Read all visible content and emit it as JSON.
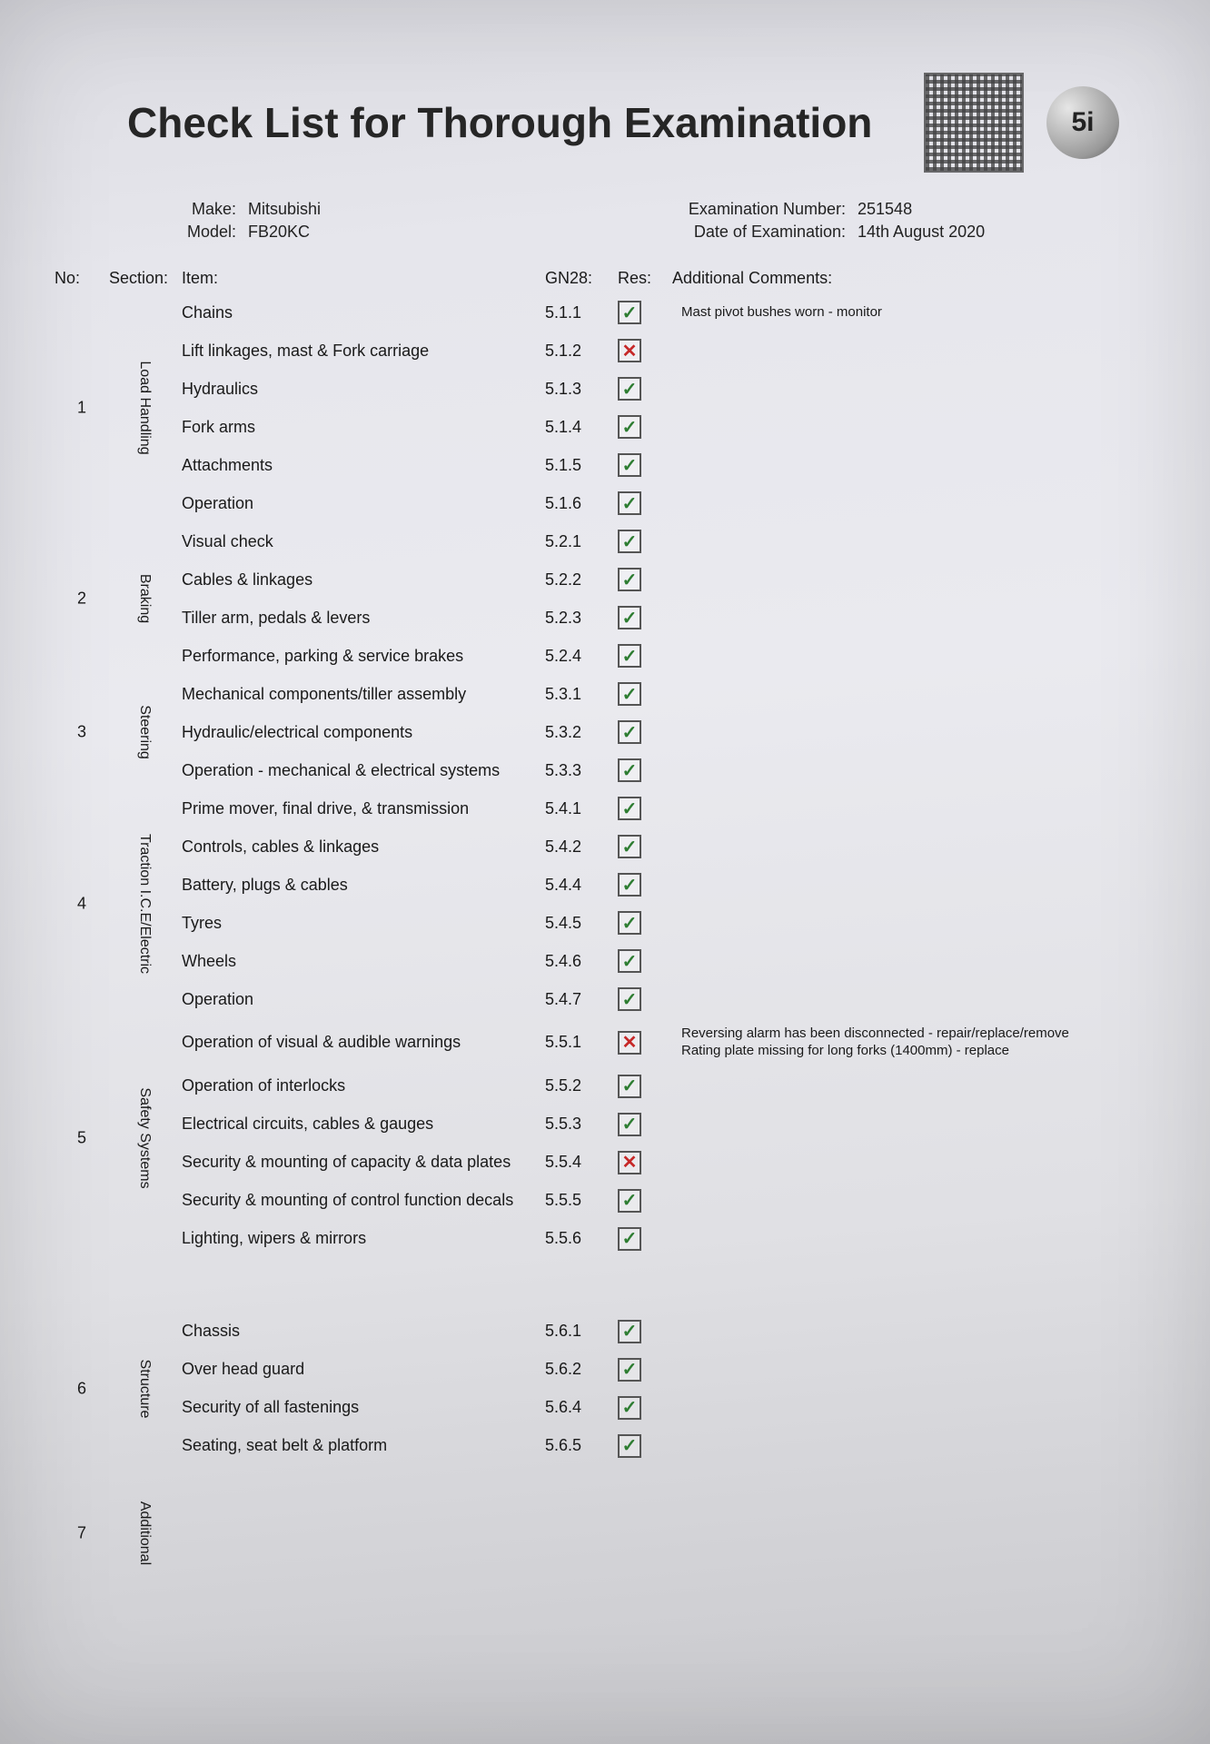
{
  "title": "Check List for Thorough Examination",
  "logo_text": "5i",
  "meta": {
    "make_lbl": "Make:",
    "make_val": "Mitsubishi",
    "model_lbl": "Model:",
    "model_val": "FB20KC",
    "exam_no_lbl": "Examination Number:",
    "exam_no_val": "251548",
    "exam_date_lbl": "Date of Examination:",
    "exam_date_val": "14th August 2020"
  },
  "columns": {
    "no": "No:",
    "section": "Section:",
    "item": "Item:",
    "gn": "GN28:",
    "res": "Res:",
    "comments": "Additional Comments:"
  },
  "styles": {
    "pass_color": "#2e7d32",
    "fail_color": "#c62828",
    "box_border": "#555555",
    "page_bg": "#e6e6ec",
    "title_fontsize": 46,
    "body_fontsize": 18
  },
  "glyphs": {
    "pass": "✓",
    "fail": "✕"
  },
  "sections": [
    {
      "no": "1",
      "name": "Load Handling",
      "rows": [
        {
          "item": "Chains",
          "gn": "5.1.1",
          "res": "pass",
          "comment": "Mast pivot bushes worn - monitor"
        },
        {
          "item": "Lift linkages, mast & Fork carriage",
          "gn": "5.1.2",
          "res": "fail",
          "comment": ""
        },
        {
          "item": "Hydraulics",
          "gn": "5.1.3",
          "res": "pass",
          "comment": ""
        },
        {
          "item": "Fork arms",
          "gn": "5.1.4",
          "res": "pass",
          "comment": ""
        },
        {
          "item": "Attachments",
          "gn": "5.1.5",
          "res": "pass",
          "comment": ""
        },
        {
          "item": "Operation",
          "gn": "5.1.6",
          "res": "pass",
          "comment": ""
        }
      ]
    },
    {
      "no": "2",
      "name": "Braking",
      "rows": [
        {
          "item": "Visual check",
          "gn": "5.2.1",
          "res": "pass",
          "comment": ""
        },
        {
          "item": "Cables & linkages",
          "gn": "5.2.2",
          "res": "pass",
          "comment": ""
        },
        {
          "item": "Tiller arm, pedals & levers",
          "gn": "5.2.3",
          "res": "pass",
          "comment": ""
        },
        {
          "item": "Performance, parking & service brakes",
          "gn": "5.2.4",
          "res": "pass",
          "comment": ""
        }
      ]
    },
    {
      "no": "3",
      "name": "Steering",
      "rows": [
        {
          "item": "Mechanical components/tiller assembly",
          "gn": "5.3.1",
          "res": "pass",
          "comment": ""
        },
        {
          "item": "Hydraulic/electrical components",
          "gn": "5.3.2",
          "res": "pass",
          "comment": ""
        },
        {
          "item": "Operation - mechanical & electrical systems",
          "gn": "5.3.3",
          "res": "pass",
          "comment": ""
        }
      ]
    },
    {
      "no": "4",
      "name": "Traction I.C.E/Electric",
      "rows": [
        {
          "item": "Prime mover, final drive, & transmission",
          "gn": "5.4.1",
          "res": "pass",
          "comment": ""
        },
        {
          "item": "Controls, cables & linkages",
          "gn": "5.4.2",
          "res": "pass",
          "comment": ""
        },
        {
          "item": "Battery, plugs & cables",
          "gn": "5.4.4",
          "res": "pass",
          "comment": ""
        },
        {
          "item": "Tyres",
          "gn": "5.4.5",
          "res": "pass",
          "comment": ""
        },
        {
          "item": "Wheels",
          "gn": "5.4.6",
          "res": "pass",
          "comment": ""
        },
        {
          "item": "Operation",
          "gn": "5.4.7",
          "res": "pass",
          "comment": ""
        }
      ]
    },
    {
      "no": "5",
      "name": "Safety Systems",
      "rows": [
        {
          "item": "Operation of visual & audible warnings",
          "gn": "5.5.1",
          "res": "fail",
          "comment": "Reversing alarm has been disconnected - repair/replace/remove\nRating plate missing for long forks (1400mm) - replace"
        },
        {
          "item": "Operation of interlocks",
          "gn": "5.5.2",
          "res": "pass",
          "comment": ""
        },
        {
          "item": "Electrical circuits, cables & gauges",
          "gn": "5.5.3",
          "res": "pass",
          "comment": ""
        },
        {
          "item": "Security & mounting of capacity & data plates",
          "gn": "5.5.4",
          "res": "fail",
          "comment": ""
        },
        {
          "item": "Security & mounting of control function decals",
          "gn": "5.5.5",
          "res": "pass",
          "comment": ""
        },
        {
          "item": "Lighting, wipers & mirrors",
          "gn": "5.5.6",
          "res": "pass",
          "comment": ""
        }
      ]
    },
    {
      "no": "6",
      "name": "Structure",
      "rows": [
        {
          "item": "Chassis",
          "gn": "5.6.1",
          "res": "pass",
          "comment": ""
        },
        {
          "item": "Over head guard",
          "gn": "5.6.2",
          "res": "pass",
          "comment": ""
        },
        {
          "item": "Security of all fastenings",
          "gn": "5.6.4",
          "res": "pass",
          "comment": ""
        },
        {
          "item": "Seating, seat belt & platform",
          "gn": "5.6.5",
          "res": "pass",
          "comment": ""
        }
      ]
    },
    {
      "no": "7",
      "name": "Additional",
      "rows": []
    }
  ]
}
